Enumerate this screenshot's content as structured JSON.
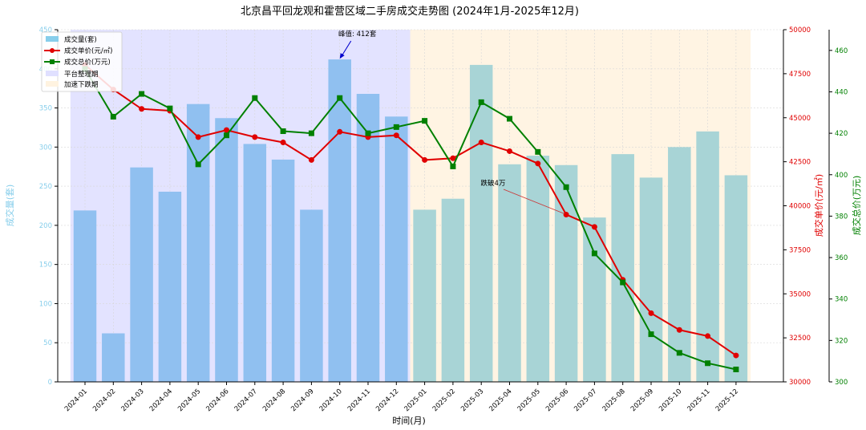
{
  "chart_data": {
    "type": "bar",
    "title": "北京昌平回龙观和霍营区域二手房成交走势图 (2024年1月-2025年12月)",
    "xlabel": "时间(月)",
    "categories": [
      "2024-01",
      "2024-02",
      "2024-03",
      "2024-04",
      "2024-05",
      "2024-06",
      "2024-07",
      "2024-08",
      "2024-09",
      "2024-10",
      "2024-11",
      "2024-12",
      "2025-01",
      "2025-02",
      "2025-03",
      "2025-04",
      "2025-05",
      "2025-06",
      "2025-07",
      "2025-08",
      "2025-09",
      "2025-10",
      "2025-11",
      "2025-12"
    ],
    "axes": {
      "left": {
        "label": "成交量(套)",
        "min": 0,
        "max": 450,
        "ticks": [
          0,
          50,
          100,
          150,
          200,
          250,
          300,
          350,
          400,
          450
        ],
        "color": "#87CEEB"
      },
      "right1": {
        "label": "成交单价(元/㎡)",
        "min": 30000,
        "max": 50000,
        "ticks": [
          30000,
          32500,
          35000,
          37500,
          40000,
          42500,
          45000,
          47500,
          50000
        ],
        "color": "#E00000"
      },
      "right2": {
        "label": "成交总价(万元)",
        "min": 300,
        "max": 470,
        "ticks": [
          300,
          320,
          340,
          360,
          380,
          400,
          420,
          440,
          460
        ],
        "color": "#008000"
      }
    },
    "series": [
      {
        "name": "成交量(套)",
        "kind": "bar",
        "axis": "left",
        "color": "#87CEEB",
        "values": [
          219,
          62,
          274,
          243,
          355,
          337,
          304,
          284,
          220,
          412,
          368,
          339,
          220,
          234,
          405,
          278,
          289,
          277,
          210,
          291,
          261,
          300,
          320,
          264
        ]
      },
      {
        "name": "成交单价(元/㎡)",
        "kind": "line",
        "marker": "circle",
        "axis": "right1",
        "color": "#E00000",
        "values": [
          48000,
          46600,
          45500,
          45400,
          43900,
          44300,
          43900,
          43600,
          42600,
          44200,
          43900,
          44000,
          42600,
          42700,
          43600,
          43100,
          42400,
          39500,
          38800,
          35800,
          33900,
          32950,
          32600,
          31500
        ]
      },
      {
        "name": "成交总价(万元)",
        "kind": "line",
        "marker": "square",
        "axis": "right2",
        "color": "#008000",
        "values": [
          451,
          428,
          439,
          432,
          405,
          419,
          437,
          421,
          420,
          437,
          420,
          423,
          426,
          404,
          435,
          427,
          411,
          394,
          362,
          348,
          323,
          314,
          309,
          306
        ]
      }
    ],
    "bar_colors": {
      "period1": "#90C0F0",
      "period2": "#A8D4D6"
    },
    "shaded_regions": [
      {
        "name": "平台整理期",
        "start": "2024-01",
        "end": "2024-12",
        "color": "#E0E0FF"
      },
      {
        "name": "加速下跌期",
        "start": "2025-01",
        "end": "2025-12",
        "color": "#FFF3E0"
      }
    ],
    "annotations": [
      {
        "text": "峰值: 412套",
        "category": "2024-10",
        "axis": "left",
        "value": 412
      },
      {
        "text": "跌破4万",
        "category": "2025-06",
        "axis": "right1",
        "value": 39500
      }
    ],
    "legend": {
      "placement": "top-left",
      "items": [
        "成交量(套)",
        "成交单价(元/㎡)",
        "成交总价(万元)",
        "平台整理期",
        "加速下跌期"
      ]
    },
    "grid": true
  }
}
